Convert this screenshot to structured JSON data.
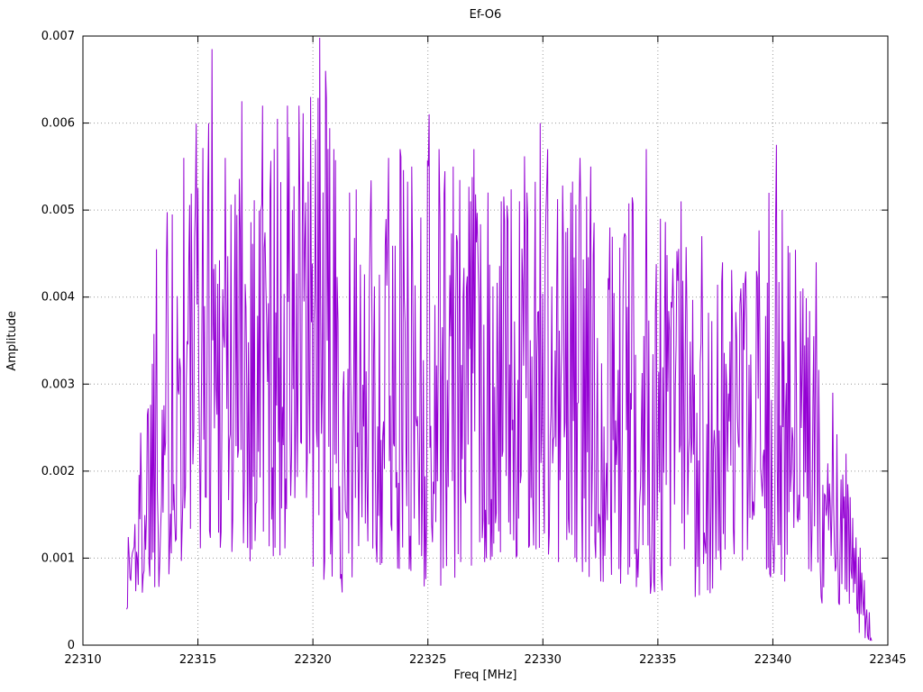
{
  "chart_data": {
    "type": "line",
    "title": "Ef-O6",
    "xlabel": "Freq [MHz]",
    "ylabel": "Amplitude",
    "xlim": [
      22310,
      22345
    ],
    "ylim": [
      0,
      0.007
    ],
    "grid": true,
    "legend": "none",
    "line_color": "#9400d3",
    "background_color": "#ffffff",
    "xticks": [
      {
        "v": 22310,
        "label": "22310"
      },
      {
        "v": 22315,
        "label": "22315"
      },
      {
        "v": 22320,
        "label": "22320"
      },
      {
        "v": 22325,
        "label": "22325"
      },
      {
        "v": 22330,
        "label": "22330"
      },
      {
        "v": 22335,
        "label": "22335"
      },
      {
        "v": 22340,
        "label": "22340"
      },
      {
        "v": 22345,
        "label": "22345"
      }
    ],
    "yticks": [
      {
        "v": 0,
        "label": "0"
      },
      {
        "v": 0.001,
        "label": "0.001"
      },
      {
        "v": 0.002,
        "label": "0.002"
      },
      {
        "v": 0.003,
        "label": "0.003"
      },
      {
        "v": 0.004,
        "label": "0.004"
      },
      {
        "v": 0.005,
        "label": "0.005"
      },
      {
        "v": 0.006,
        "label": "0.006"
      },
      {
        "v": 0.007,
        "label": "0.007"
      }
    ],
    "series_description": "Dense noisy amplitude spectrum spanning ~22311.9 to ~22344.3 MHz; bulk of values between 0.001 and 0.005, tallest spike ~0.0070 at 22320.3 MHz, secondary maxima ~0.00685 at 22315.6, ~0.0061 at 22325, ~0.0060 at 22330, ~0.00575 at 22340; amplitudes decay toward ~0 at the right edge.",
    "synthesis": {
      "seed": 1337,
      "n_points": 900,
      "x_start": 22311.9,
      "x_end": 22344.3,
      "exponent": 1.35,
      "end_value": 5e-05,
      "envelope": [
        [
          22311.9,
          0.0003,
          0.0014
        ],
        [
          22312.5,
          0.0005,
          0.0026
        ],
        [
          22313.0,
          0.0006,
          0.0045
        ],
        [
          22314.0,
          0.0008,
          0.0056
        ],
        [
          22315.5,
          0.0012,
          0.0066
        ],
        [
          22316.5,
          0.0008,
          0.0058
        ],
        [
          22317.0,
          0.0009,
          0.0062
        ],
        [
          22318.0,
          0.001,
          0.0061
        ],
        [
          22319.5,
          0.001,
          0.0062
        ],
        [
          22320.3,
          0.0007,
          0.0068
        ],
        [
          22321.0,
          0.0005,
          0.0057
        ],
        [
          22322.0,
          0.0008,
          0.0052
        ],
        [
          22323.5,
          0.0009,
          0.0056
        ],
        [
          22325.0,
          0.0006,
          0.006
        ],
        [
          22326.5,
          0.0008,
          0.0056
        ],
        [
          22328.0,
          0.001,
          0.0052
        ],
        [
          22330.0,
          0.0009,
          0.0059
        ],
        [
          22331.5,
          0.0008,
          0.0055
        ],
        [
          22333.0,
          0.0007,
          0.0049
        ],
        [
          22334.5,
          0.0006,
          0.0056
        ],
        [
          22336.0,
          0.0005,
          0.005
        ],
        [
          22337.5,
          0.0006,
          0.0044
        ],
        [
          22339.0,
          0.0008,
          0.0043
        ],
        [
          22340.1,
          0.0007,
          0.0056
        ],
        [
          22341.5,
          0.0006,
          0.0042
        ],
        [
          22342.5,
          0.0004,
          0.003
        ],
        [
          22343.5,
          0.0002,
          0.0016
        ],
        [
          22344.3,
          0.0,
          0.0004
        ]
      ],
      "peaks": [
        [
          22313.2,
          0.00455
        ],
        [
          22313.9,
          0.00495
        ],
        [
          22314.4,
          0.0056
        ],
        [
          22315.0,
          0.00525
        ],
        [
          22315.6,
          0.00685
        ],
        [
          22316.2,
          0.0056
        ],
        [
          22316.9,
          0.00625
        ],
        [
          22317.8,
          0.0062
        ],
        [
          22318.3,
          0.0057
        ],
        [
          22318.9,
          0.0062
        ],
        [
          22319.4,
          0.0062
        ],
        [
          22319.9,
          0.0063
        ],
        [
          22320.3,
          0.00698
        ],
        [
          22320.55,
          0.0066
        ],
        [
          22320.9,
          0.0057
        ],
        [
          22321.6,
          0.0052
        ],
        [
          22322.5,
          0.0049
        ],
        [
          22323.3,
          0.0056
        ],
        [
          22323.8,
          0.0057
        ],
        [
          22324.3,
          0.0055
        ],
        [
          22325.05,
          0.0061
        ],
        [
          22325.5,
          0.0057
        ],
        [
          22326.1,
          0.0055
        ],
        [
          22327.0,
          0.0057
        ],
        [
          22327.6,
          0.0052
        ],
        [
          22328.2,
          0.0051
        ],
        [
          22329.3,
          0.0052
        ],
        [
          22329.9,
          0.006
        ],
        [
          22330.2,
          0.0057
        ],
        [
          22331.2,
          0.0052
        ],
        [
          22331.6,
          0.0056
        ],
        [
          22332.1,
          0.0055
        ],
        [
          22332.9,
          0.0048
        ],
        [
          22333.6,
          0.0047
        ],
        [
          22334.5,
          0.0057
        ],
        [
          22335.1,
          0.0049
        ],
        [
          22336.0,
          0.0051
        ],
        [
          22336.9,
          0.0047
        ],
        [
          22337.8,
          0.0044
        ],
        [
          22338.6,
          0.0041
        ],
        [
          22339.3,
          0.0043
        ],
        [
          22340.15,
          0.00575
        ],
        [
          22340.4,
          0.005
        ],
        [
          22341.3,
          0.0041
        ],
        [
          22341.9,
          0.0044
        ],
        [
          22342.6,
          0.0029
        ],
        [
          22343.2,
          0.0022
        ]
      ]
    }
  }
}
